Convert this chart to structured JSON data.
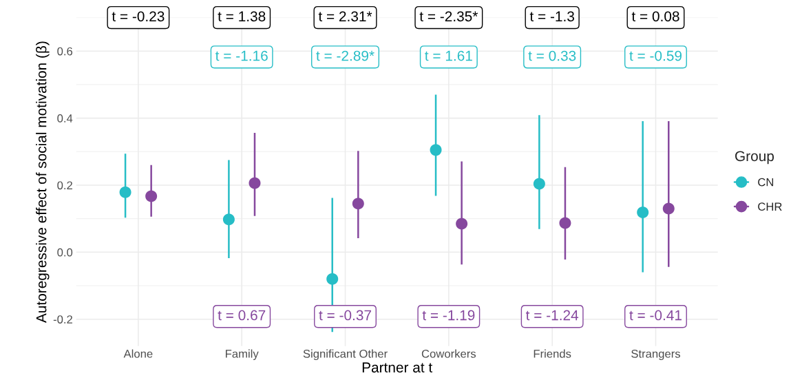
{
  "chart_data": {
    "type": "scatter",
    "xlabel": "Partner at t",
    "ylabel": "Autoregressive effect of social motivation (β)",
    "legend_title": "Group",
    "categories": [
      "Alone",
      "Family",
      "Significant Other",
      "Coworkers",
      "Friends",
      "Strangers"
    ],
    "series": [
      {
        "name": "CN",
        "color": "#26bdc6",
        "values": [
          0.179,
          0.098,
          -0.08,
          0.305,
          0.204,
          0.119
        ],
        "errors": [
          [
            0.103,
            0.294
          ],
          [
            -0.018,
            0.275
          ],
          [
            -0.238,
            0.162
          ],
          [
            0.168,
            0.47
          ],
          [
            0.069,
            0.409
          ],
          [
            -0.06,
            0.391
          ]
        ]
      },
      {
        "name": "CHR",
        "color": "#86489e",
        "values": [
          0.167,
          0.206,
          0.145,
          0.085,
          0.087,
          0.13
        ],
        "errors": [
          [
            0.106,
            0.26
          ],
          [
            0.108,
            0.356
          ],
          [
            0.042,
            0.302
          ],
          [
            -0.037,
            0.271
          ],
          [
            -0.022,
            0.254
          ],
          [
            -0.044,
            0.391
          ]
        ]
      }
    ],
    "ylim": [
      -0.28,
      0.6
    ],
    "yticks": [
      {
        "value": -0.2,
        "label": "-0.2"
      },
      {
        "value": 0.0,
        "label": "0.0"
      },
      {
        "value": 0.2,
        "label": "0.2"
      },
      {
        "value": 0.4,
        "label": "0.4"
      },
      {
        "value": 0.6,
        "label": "0.6"
      }
    ],
    "grid": true,
    "legend": "right",
    "marker": "circle",
    "annotations": [
      "t = -0.23",
      "t = 1.38",
      "t = 2.31*",
      "t = -2.35*",
      "t = -1.3",
      "t = 0.08",
      "t = -1.16",
      "t = -2.89*",
      "t = 1.61",
      "t = 0.33",
      "t = -0.59",
      "t = 0.67",
      "t = -0.37",
      "t = -1.19",
      "t = -1.24",
      "t = -0.41"
    ]
  }
}
